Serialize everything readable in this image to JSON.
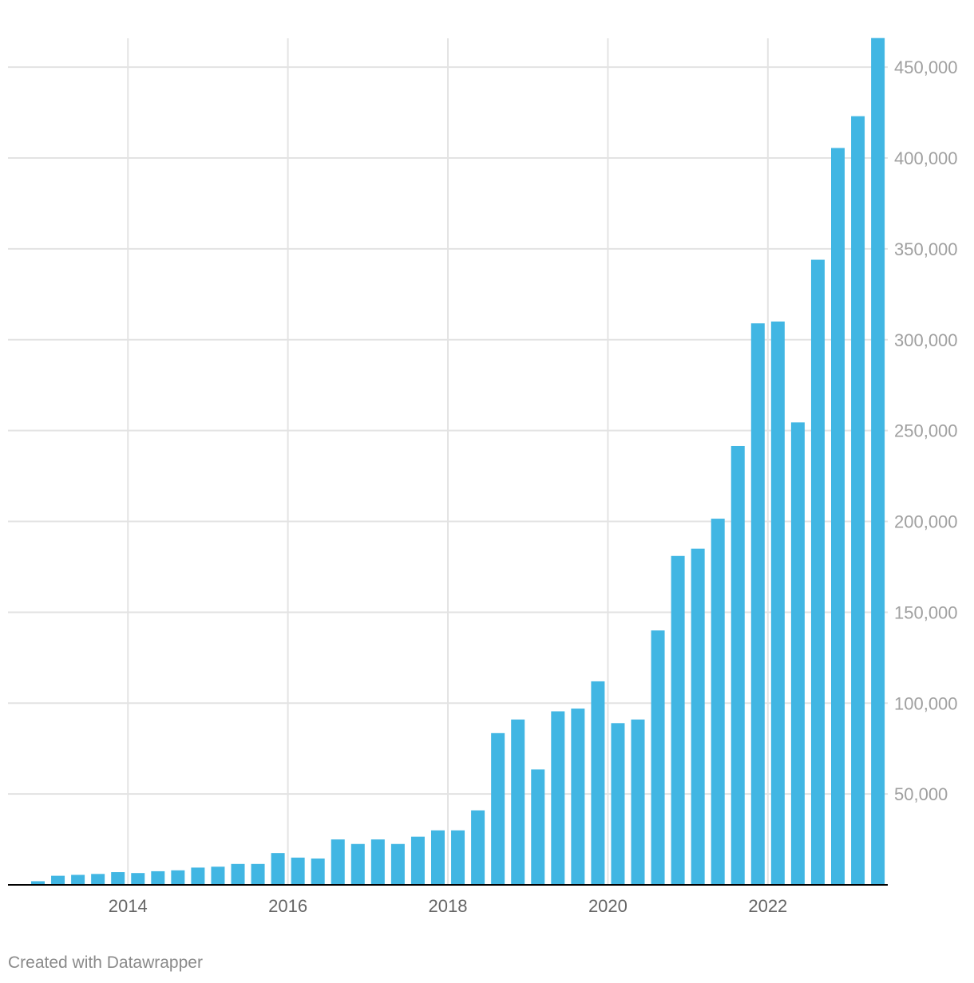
{
  "chart_data": {
    "type": "bar",
    "title": "",
    "xlabel": "",
    "ylabel": "",
    "color": "#41b6e3",
    "ylim": [
      0,
      466000
    ],
    "y_ticks": [
      50000,
      100000,
      150000,
      200000,
      250000,
      300000,
      350000,
      400000,
      450000
    ],
    "y_tick_labels": [
      "50,000",
      "100,000",
      "150,000",
      "200,000",
      "250,000",
      "300,000",
      "350,000",
      "400,000",
      "450,000"
    ],
    "x_ticks": [
      "2014",
      "2016",
      "2018",
      "2020",
      "2022"
    ],
    "grid": true,
    "y_axis_position": "right",
    "categories": [
      "2012-Q4",
      "2013-Q1",
      "2013-Q2",
      "2013-Q3",
      "2013-Q4",
      "2014-Q1",
      "2014-Q2",
      "2014-Q3",
      "2014-Q4",
      "2015-Q1",
      "2015-Q2",
      "2015-Q3",
      "2015-Q4",
      "2016-Q1",
      "2016-Q2",
      "2016-Q3",
      "2016-Q4",
      "2017-Q1",
      "2017-Q2",
      "2017-Q3",
      "2017-Q4",
      "2018-Q1",
      "2018-Q2",
      "2018-Q3",
      "2018-Q4",
      "2019-Q1",
      "2019-Q2",
      "2019-Q3",
      "2019-Q4",
      "2020-Q1",
      "2020-Q2",
      "2020-Q3",
      "2020-Q4",
      "2021-Q1",
      "2021-Q2",
      "2021-Q3",
      "2021-Q4",
      "2022-Q1",
      "2022-Q2",
      "2022-Q3",
      "2022-Q4",
      "2023-Q1",
      "2023-Q2"
    ],
    "values": [
      2000,
      5000,
      5500,
      6000,
      7000,
      6500,
      7500,
      8000,
      9500,
      10000,
      11500,
      11500,
      17500,
      15000,
      14500,
      25000,
      22500,
      25000,
      22500,
      26500,
      30000,
      30000,
      41000,
      83500,
      91000,
      63500,
      95500,
      97000,
      112000,
      89000,
      91000,
      140000,
      181000,
      185000,
      201500,
      241500,
      309000,
      310000,
      254500,
      344000,
      405500,
      423000,
      466000
    ]
  },
  "footer": {
    "credit": "Created with Datawrapper"
  }
}
